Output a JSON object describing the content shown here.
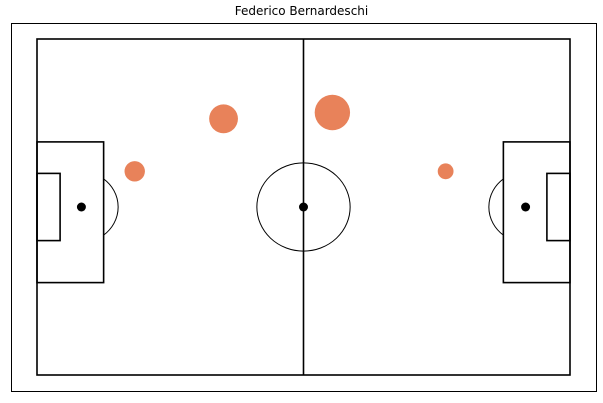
{
  "chart_data": {
    "type": "scatter",
    "title": "Federico Bernardeschi",
    "xlabel": "",
    "ylabel": "",
    "xlim": [
      0,
      120
    ],
    "ylim": [
      0,
      80
    ],
    "grid": false,
    "pitch_color": "#000000",
    "marker_color": "#e8825a",
    "points": [
      {
        "x": 42,
        "y": 61,
        "value": 2
      },
      {
        "x": 66.5,
        "y": 62.5,
        "value": 3
      },
      {
        "x": 22,
        "y": 48.5,
        "value": 1
      },
      {
        "x": 92,
        "y": 48.5,
        "value": 0.6
      }
    ]
  }
}
